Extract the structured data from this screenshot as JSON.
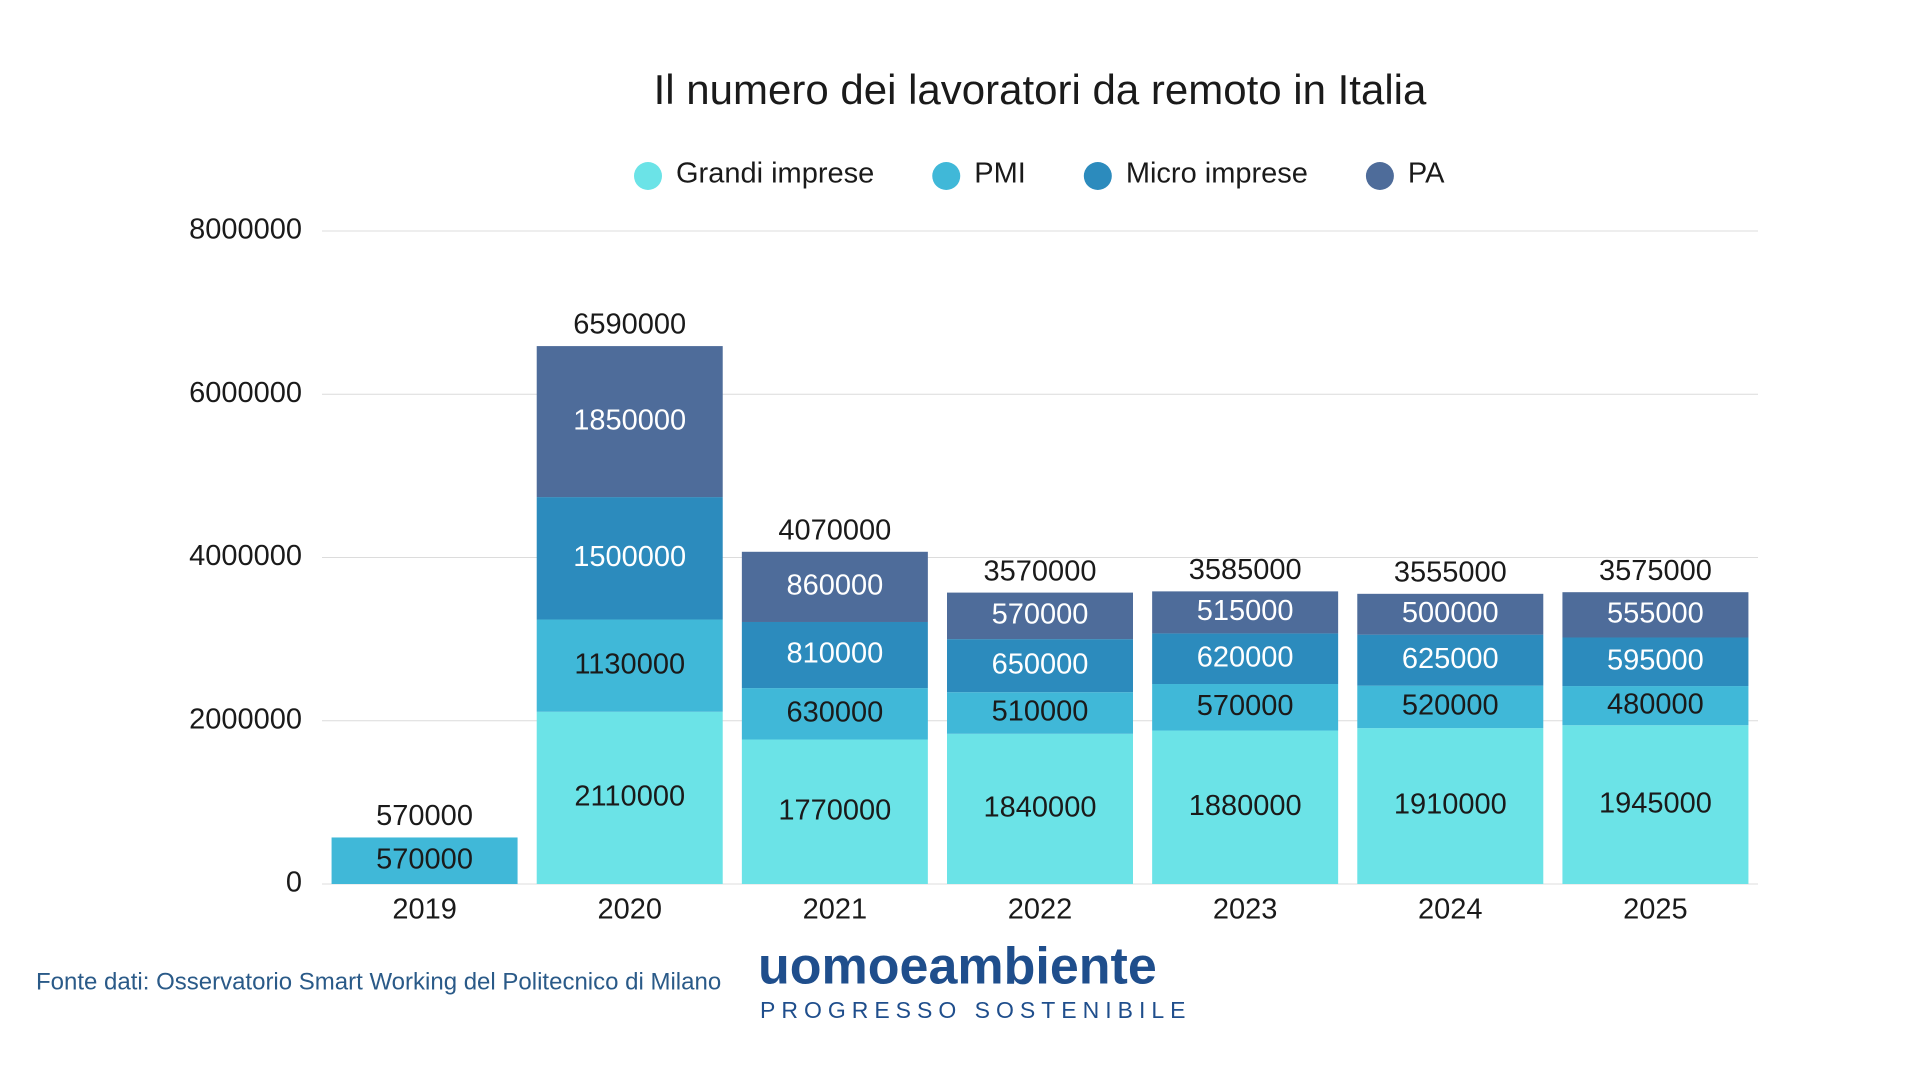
{
  "chart_data": {
    "type": "stacked-bar",
    "title": "Il numero dei lavoratori da remoto in Italia",
    "categories": [
      "2019",
      "2020",
      "2021",
      "2022",
      "2023",
      "2024",
      "2025"
    ],
    "series": [
      {
        "name": "Grandi imprese",
        "color": "#6be3e7",
        "values": [
          null,
          2110000,
          1770000,
          1840000,
          1880000,
          1910000,
          1945000
        ]
      },
      {
        "name": "PMI",
        "color": "#40b8d8",
        "values": [
          570000,
          1130000,
          630000,
          510000,
          570000,
          520000,
          480000
        ]
      },
      {
        "name": "Micro imprese",
        "color": "#2c8bbd",
        "values": [
          null,
          1500000,
          810000,
          650000,
          620000,
          625000,
          595000
        ]
      },
      {
        "name": "PA",
        "color": "#4e6c9a",
        "values": [
          null,
          1850000,
          860000,
          570000,
          515000,
          500000,
          555000
        ]
      }
    ],
    "totals": [
      570000,
      6590000,
      4070000,
      3570000,
      3585000,
      3555000,
      3575000
    ],
    "ylim": [
      0,
      8000000
    ],
    "yticks": [
      0,
      2000000,
      4000000,
      6000000,
      8000000
    ],
    "grid": true,
    "legend": "top"
  },
  "source": "Fonte dati: Osservatorio Smart Working del Politecnico di Milano",
  "logo": {
    "name": "uomoeambiente",
    "tagline": "PROGRESSO SOSTENIBILE"
  }
}
